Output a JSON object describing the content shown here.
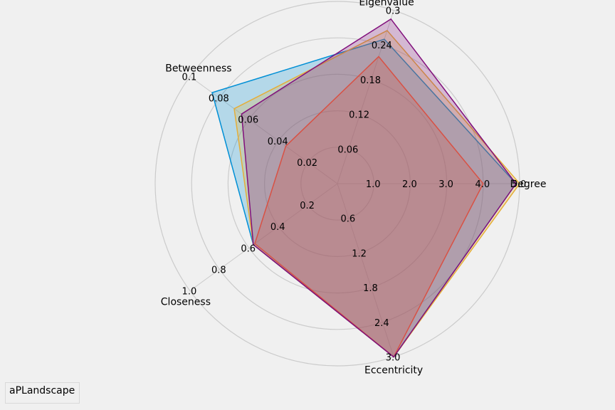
{
  "chart_data": {
    "type": "radar",
    "axes": [
      {
        "name": "Degree",
        "ticks": [
          "1.0",
          "2.0",
          "3.0",
          "4.0",
          "5.0"
        ],
        "max": 5.0
      },
      {
        "name": "Eigenvalue",
        "ticks": [
          "0.06",
          "0.12",
          "0.18",
          "0.24",
          "0.3"
        ],
        "max": 0.3
      },
      {
        "name": "Betweenness",
        "ticks": [
          "0.02",
          "0.04",
          "0.06",
          "0.08",
          "0.1"
        ],
        "max": 0.1
      },
      {
        "name": "Closeness",
        "ticks": [
          "0.2",
          "0.4",
          "0.6",
          "0.8",
          "1.0"
        ],
        "max": 1.0
      },
      {
        "name": "Eccentricity",
        "ticks": [
          "0.6",
          "1.2",
          "1.8",
          "2.4",
          "3.0"
        ],
        "max": 3.0
      }
    ],
    "series": [
      {
        "color": "#008fd5",
        "fill_opacity": 0.25,
        "values": [
          4.9,
          0.25,
          0.085,
          0.57,
          3.0
        ]
      },
      {
        "color": "#fc4f30",
        "fill_opacity": 0.25,
        "values": [
          4.0,
          0.22,
          0.035,
          0.56,
          3.0
        ]
      },
      {
        "color": "#e5ae38",
        "fill_opacity": 0.25,
        "values": [
          5.0,
          0.265,
          0.07,
          0.57,
          3.0
        ]
      },
      {
        "color": "#810f7c",
        "fill_opacity": 0.25,
        "values": [
          4.9,
          0.285,
          0.065,
          0.57,
          3.0
        ]
      }
    ],
    "grid": true,
    "legend": {
      "entries": [
        "aPLandscape"
      ],
      "placement": "bottom-left"
    },
    "background": "#f0f0f0"
  }
}
